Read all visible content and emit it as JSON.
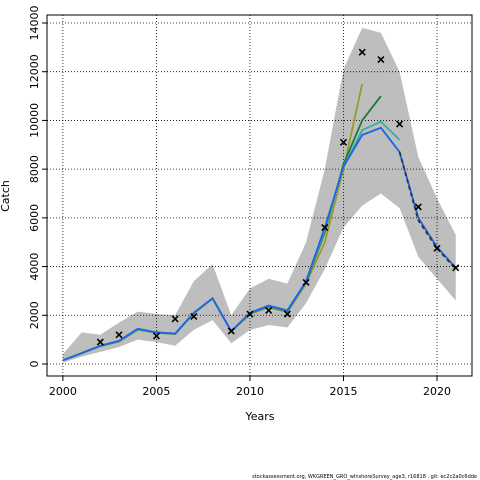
{
  "chart_data": {
    "type": "line",
    "x_label": "Years",
    "y_label": "Catch",
    "footer": "stockassessment.org, WKGREEN_GRO_wInshoreSurvey_age3, r16818 , git: ec2c2a0c6dde",
    "x": [
      2000,
      2001,
      2002,
      2003,
      2004,
      2005,
      2006,
      2007,
      2008,
      2009,
      2010,
      2011,
      2012,
      2013,
      2014,
      2015,
      2016,
      2017,
      2018,
      2019,
      2020,
      2021
    ],
    "xlim": [
      1999.15,
      2021.87
    ],
    "xticks": [
      2000,
      2005,
      2010,
      2015,
      2020
    ],
    "ylim": [
      -493,
      14328
    ],
    "yticks": [
      0,
      2000,
      4000,
      6000,
      8000,
      10000,
      12000,
      14000
    ],
    "grid": true,
    "band": {
      "color": "#bebebe",
      "upper": [
        400,
        1300,
        1200,
        1700,
        2150,
        2050,
        2000,
        3400,
        4100,
        2000,
        3100,
        3500,
        3300,
        5000,
        8000,
        12100,
        13800,
        13600,
        12000,
        8500,
        6800,
        5300
      ],
      "lower": [
        50,
        300,
        500,
        700,
        1000,
        900,
        750,
        1400,
        1800,
        850,
        1400,
        1600,
        1500,
        2500,
        3900,
        5600,
        6500,
        7000,
        6400,
        4400,
        3500,
        2600
      ]
    },
    "series": [
      {
        "color": "#9a9a2a",
        "values": [
          150,
          430,
          730,
          920,
          1400,
          1280,
          1230,
          2080,
          2680,
          1330,
          2050,
          2330,
          2130,
          3300,
          5000,
          8000,
          11500,
          null,
          null,
          null,
          null,
          null
        ]
      },
      {
        "color": "#1f7a3a",
        "values": [
          150,
          440,
          740,
          930,
          1420,
          1290,
          1240,
          2090,
          2690,
          1340,
          2070,
          2360,
          2160,
          3350,
          5400,
          8200,
          10000,
          11000,
          null,
          null,
          null,
          null
        ]
      },
      {
        "color": "#3aaea0",
        "values": [
          150,
          445,
          745,
          940,
          1430,
          1295,
          1245,
          2095,
          2695,
          1345,
          2085,
          2380,
          2180,
          3380,
          5500,
          8100,
          9600,
          9950,
          9200,
          null,
          null,
          null
        ]
      },
      {
        "color": "#1e64e6",
        "values": [
          150,
          450,
          750,
          950,
          1450,
          1300,
          1250,
          2100,
          2700,
          1350,
          2100,
          2400,
          2200,
          3400,
          5600,
          8100,
          9400,
          9700,
          8700,
          6000,
          4800,
          3950
        ]
      },
      {
        "color": "#333333",
        "dashed": true,
        "values": [
          null,
          null,
          null,
          null,
          null,
          null,
          null,
          null,
          null,
          null,
          null,
          null,
          null,
          null,
          null,
          null,
          null,
          null,
          8700,
          5900,
          4750,
          3900
        ]
      }
    ],
    "points": {
      "marker": "x",
      "x": [
        2002,
        2003,
        2005,
        2006,
        2007,
        2009,
        2010,
        2011,
        2012,
        2013,
        2014,
        2015,
        2016,
        2017,
        2018,
        2019,
        2020,
        2021
      ],
      "y": [
        900,
        1200,
        1150,
        1850,
        1950,
        1350,
        2050,
        2200,
        2050,
        3350,
        5600,
        9100,
        12800,
        12500,
        9850,
        6450,
        4750,
        3950
      ]
    }
  }
}
